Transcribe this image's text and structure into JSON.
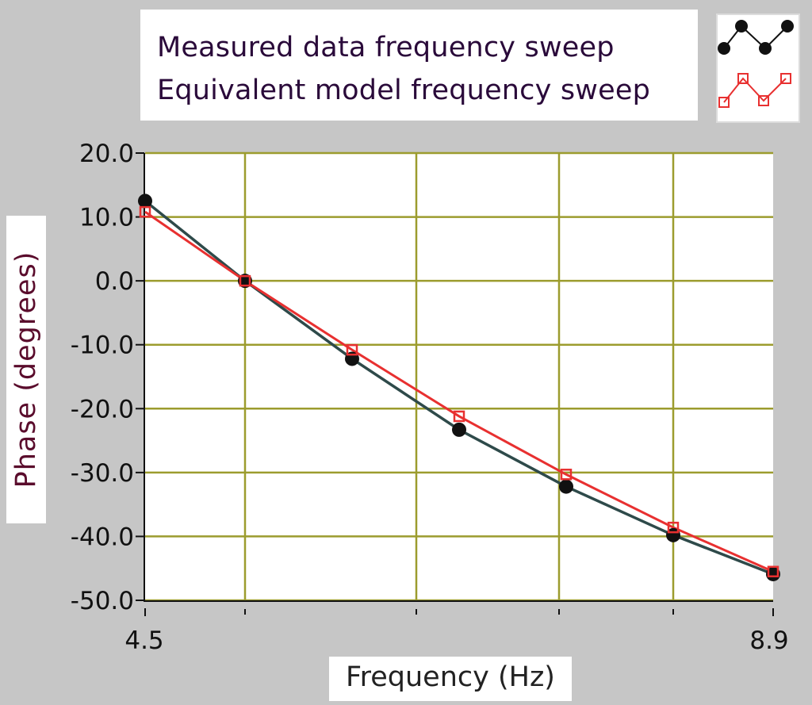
{
  "chart_data": {
    "type": "line",
    "xlabel": "Frequency (Hz)",
    "ylabel": "Phase (degrees)",
    "xlim": [
      4.5,
      8.9
    ],
    "ylim": [
      -50.0,
      20.0
    ],
    "x_tick_labels": [
      "4.5",
      "8.9"
    ],
    "y_ticks": [
      20.0,
      10.0,
      0.0,
      -10.0,
      -20.0,
      -30.0,
      -40.0,
      -50.0
    ],
    "y_tick_labels": [
      "20.0",
      "10.0",
      "0.0",
      "-10.0",
      "-20.0",
      "-30.0",
      "-40.0",
      "-50.0"
    ],
    "x_grid": [
      5.2,
      6.4,
      7.4,
      8.2
    ],
    "x_minor_ticks": [
      5.2,
      6.4,
      7.4,
      8.2
    ],
    "grid": true,
    "legend_position": "top",
    "x": [
      4.5,
      5.2,
      5.95,
      6.7,
      7.45,
      8.2,
      8.9
    ],
    "series": [
      {
        "name": "Measured data frequency sweep",
        "color": "#111111",
        "line_color": "#2e4a4a",
        "marker": "filled-circle",
        "values": [
          12.5,
          0.0,
          -12.2,
          -23.3,
          -32.2,
          -39.8,
          -45.9
        ]
      },
      {
        "name": "Equivalent model frequency sweep",
        "color": "#e83030",
        "marker": "hollow-square",
        "values": [
          10.8,
          0.0,
          -10.8,
          -21.2,
          -30.3,
          -38.6,
          -45.5
        ]
      }
    ]
  },
  "colors": {
    "panel_bg": "#c6c6c6",
    "plot_bg": "#ffffff",
    "grid": "#9c9c2e"
  }
}
